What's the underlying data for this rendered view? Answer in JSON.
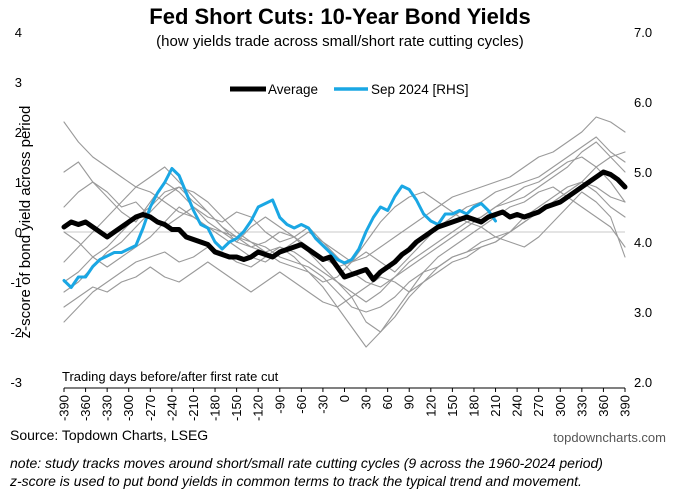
{
  "chart_data": {
    "type": "line",
    "title": "Fed Short Cuts: 10-Year Bond Yields",
    "subtitle": "(how yields trade across small/short rate cutting cycles)",
    "ylabel": "z-score of bond yield across period",
    "xlabel": "Trading days before/after first rate cut",
    "ylim": [
      -3,
      4
    ],
    "y2lim": [
      2.0,
      7.0
    ],
    "xlim": [
      -390,
      390
    ],
    "yticks": [
      "4",
      "3",
      "2",
      "1",
      "0",
      "-1",
      "-2",
      "-3"
    ],
    "y2ticks": [
      "7.0",
      "6.0",
      "5.0",
      "4.0",
      "3.0",
      "2.0"
    ],
    "xticks": [
      "-390",
      "-360",
      "-330",
      "-300",
      "-270",
      "-240",
      "-210",
      "-180",
      "-150",
      "-120",
      "-90",
      "-60",
      "-30",
      "0",
      "30",
      "60",
      "90",
      "120",
      "150",
      "180",
      "210",
      "240",
      "270",
      "300",
      "330",
      "360",
      "390"
    ],
    "legend_placement": "top-center",
    "zero_line": true,
    "series": [
      {
        "name": "Average",
        "color": "#000000",
        "axis": "left",
        "role": "average",
        "x": [
          -390,
          -380,
          -370,
          -360,
          -350,
          -340,
          -330,
          -320,
          -310,
          -300,
          -290,
          -280,
          -270,
          -260,
          -250,
          -240,
          -230,
          -220,
          -210,
          -200,
          -190,
          -180,
          -170,
          -160,
          -150,
          -140,
          -130,
          -120,
          -110,
          -100,
          -90,
          -80,
          -70,
          -60,
          -50,
          -40,
          -30,
          -20,
          -10,
          0,
          10,
          20,
          30,
          40,
          50,
          60,
          70,
          80,
          90,
          100,
          110,
          120,
          130,
          140,
          150,
          160,
          170,
          180,
          190,
          200,
          210,
          220,
          230,
          240,
          250,
          260,
          270,
          280,
          290,
          300,
          310,
          320,
          330,
          340,
          350,
          360,
          370,
          380,
          390
        ],
        "y": [
          0.1,
          0.2,
          0.15,
          0.2,
          0.1,
          0.0,
          -0.1,
          0.0,
          0.1,
          0.2,
          0.3,
          0.35,
          0.3,
          0.2,
          0.15,
          0.05,
          0.05,
          -0.1,
          -0.15,
          -0.2,
          -0.25,
          -0.4,
          -0.45,
          -0.5,
          -0.5,
          -0.55,
          -0.5,
          -0.4,
          -0.45,
          -0.5,
          -0.4,
          -0.35,
          -0.3,
          -0.25,
          -0.35,
          -0.45,
          -0.55,
          -0.5,
          -0.7,
          -0.9,
          -0.85,
          -0.8,
          -0.75,
          -0.95,
          -0.8,
          -0.7,
          -0.6,
          -0.45,
          -0.35,
          -0.2,
          -0.1,
          0.0,
          0.1,
          0.15,
          0.2,
          0.25,
          0.3,
          0.25,
          0.2,
          0.3,
          0.35,
          0.4,
          0.3,
          0.35,
          0.3,
          0.35,
          0.4,
          0.5,
          0.55,
          0.6,
          0.7,
          0.8,
          0.9,
          1.0,
          1.1,
          1.2,
          1.15,
          1.05,
          0.9
        ]
      },
      {
        "name": "Sep 2024 [RHS]",
        "color": "#1aa7e4",
        "axis": "right",
        "role": "current",
        "x": [
          -390,
          -380,
          -370,
          -360,
          -350,
          -340,
          -330,
          -320,
          -310,
          -300,
          -290,
          -280,
          -270,
          -260,
          -250,
          -240,
          -230,
          -220,
          -210,
          -200,
          -190,
          -180,
          -170,
          -160,
          -150,
          -140,
          -130,
          -120,
          -110,
          -100,
          -90,
          -80,
          -70,
          -60,
          -50,
          -40,
          -30,
          -20,
          -10,
          0,
          10,
          20,
          30,
          40,
          50,
          60,
          70,
          80,
          90,
          100,
          110,
          120,
          130,
          140,
          150,
          160,
          170,
          180,
          190,
          200,
          210
        ],
        "y": [
          3.45,
          3.35,
          3.5,
          3.5,
          3.65,
          3.75,
          3.8,
          3.85,
          3.85,
          3.9,
          3.95,
          4.2,
          4.5,
          4.7,
          4.85,
          5.05,
          4.95,
          4.7,
          4.45,
          4.25,
          4.2,
          4.0,
          3.9,
          4.0,
          4.05,
          4.15,
          4.3,
          4.5,
          4.55,
          4.6,
          4.35,
          4.25,
          4.2,
          4.25,
          4.2,
          4.05,
          3.95,
          3.85,
          3.75,
          3.7,
          3.75,
          3.9,
          4.15,
          4.35,
          4.5,
          4.45,
          4.65,
          4.8,
          4.75,
          4.6,
          4.4,
          4.3,
          4.25,
          4.4,
          4.4,
          4.45,
          4.4,
          4.5,
          4.55,
          4.45,
          4.3
        ]
      },
      {
        "name": "",
        "color": "#9a9a9a",
        "axis": "left",
        "role": "cycle",
        "x": [
          -390,
          -370,
          -350,
          -330,
          -310,
          -290,
          -270,
          -250,
          -230,
          -210,
          -190,
          -170,
          -150,
          -130,
          -110,
          -90,
          -70,
          -50,
          -30,
          -10,
          10,
          30,
          50,
          70,
          90,
          110,
          130,
          150,
          170,
          190,
          210,
          230,
          250,
          270,
          290,
          310,
          330,
          350,
          370,
          390
        ],
        "y": [
          2.2,
          1.8,
          1.5,
          1.3,
          1.1,
          0.9,
          0.8,
          0.6,
          0.4,
          0.3,
          0.1,
          0.0,
          -0.1,
          -0.2,
          -0.3,
          -0.5,
          -0.6,
          -0.7,
          -0.9,
          -1.2,
          -1.5,
          -1.6,
          -1.5,
          -1.3,
          -1.0,
          -0.8,
          -0.7,
          -0.5,
          -0.4,
          -0.2,
          -0.1,
          0.0,
          0.3,
          0.5,
          0.7,
          0.9,
          1.0,
          0.8,
          0.5,
          0.3
        ]
      },
      {
        "name": "",
        "color": "#9a9a9a",
        "axis": "left",
        "role": "cycle",
        "x": [
          -390,
          -370,
          -350,
          -330,
          -310,
          -290,
          -270,
          -250,
          -230,
          -210,
          -190,
          -170,
          -150,
          -130,
          -110,
          -90,
          -70,
          -50,
          -30,
          -10,
          10,
          30,
          50,
          70,
          90,
          110,
          130,
          150,
          170,
          190,
          210,
          230,
          250,
          270,
          290,
          310,
          330,
          350,
          370,
          390
        ],
        "y": [
          -1.0,
          -0.8,
          -0.5,
          -0.3,
          0.0,
          0.3,
          0.5,
          0.8,
          0.9,
          0.6,
          0.4,
          0.1,
          -0.2,
          -0.3,
          -0.4,
          -0.3,
          -0.5,
          -0.8,
          -1.0,
          -0.9,
          -0.6,
          -0.2,
          0.2,
          0.5,
          0.7,
          0.8,
          0.6,
          0.4,
          0.2,
          0.3,
          0.5,
          0.6,
          0.7,
          0.9,
          1.1,
          1.3,
          1.6,
          1.8,
          1.5,
          1.6
        ]
      },
      {
        "name": "",
        "color": "#9a9a9a",
        "axis": "left",
        "role": "cycle",
        "x": [
          -390,
          -370,
          -350,
          -330,
          -310,
          -290,
          -270,
          -250,
          -230,
          -210,
          -190,
          -170,
          -150,
          -130,
          -110,
          -90,
          -70,
          -50,
          -30,
          -10,
          10,
          30,
          50,
          70,
          90,
          110,
          130,
          150,
          170,
          190,
          210,
          230,
          250,
          270,
          290,
          310,
          330,
          350,
          370,
          390
        ],
        "y": [
          -1.8,
          -1.5,
          -1.2,
          -1.0,
          -0.8,
          -0.6,
          -0.5,
          -0.4,
          -0.6,
          -0.5,
          -0.3,
          -0.4,
          -0.6,
          -0.7,
          -0.5,
          -0.3,
          -0.4,
          -0.6,
          -0.8,
          -1.0,
          -1.2,
          -1.4,
          -1.2,
          -0.9,
          -0.7,
          -0.5,
          -0.3,
          -0.1,
          0.1,
          0.3,
          0.5,
          0.7,
          0.9,
          1.0,
          1.2,
          1.4,
          1.5,
          1.3,
          1.0,
          0.6
        ]
      },
      {
        "name": "",
        "color": "#9a9a9a",
        "axis": "left",
        "role": "cycle",
        "x": [
          -390,
          -370,
          -350,
          -330,
          -310,
          -290,
          -270,
          -250,
          -230,
          -210,
          -190,
          -170,
          -150,
          -130,
          -110,
          -90,
          -70,
          -50,
          -30,
          -10,
          10,
          30,
          50,
          70,
          90,
          110,
          130,
          150,
          170,
          190,
          210,
          230,
          250,
          270,
          290,
          310,
          330,
          350,
          370,
          390
        ],
        "y": [
          0.5,
          0.8,
          1.0,
          0.7,
          0.4,
          0.2,
          0.6,
          1.0,
          0.8,
          0.5,
          0.3,
          0.2,
          0.4,
          0.3,
          0.0,
          -0.2,
          -0.1,
          0.1,
          -0.2,
          -0.5,
          -0.8,
          -1.0,
          -1.1,
          -0.9,
          -0.6,
          -0.4,
          -0.2,
          0.0,
          0.2,
          0.1,
          -0.1,
          -0.2,
          -0.3,
          -0.1,
          0.2,
          0.5,
          0.8,
          0.6,
          0.3,
          -0.5
        ]
      },
      {
        "name": "",
        "color": "#9a9a9a",
        "axis": "left",
        "role": "cycle",
        "x": [
          -390,
          -370,
          -350,
          -330,
          -310,
          -290,
          -270,
          -250,
          -230,
          -210,
          -190,
          -170,
          -150,
          -130,
          -110,
          -90,
          -70,
          -50,
          -30,
          -10,
          10,
          30,
          50,
          70,
          90,
          110,
          130,
          150,
          170,
          190,
          210,
          230,
          250,
          270,
          290,
          310,
          330,
          350,
          370,
          390
        ],
        "y": [
          -1.5,
          -1.3,
          -1.1,
          -1.2,
          -1.0,
          -0.9,
          -0.7,
          -0.9,
          -1.0,
          -0.8,
          -0.6,
          -0.8,
          -1.0,
          -1.2,
          -1.0,
          -0.8,
          -1.0,
          -1.2,
          -1.4,
          -1.5,
          -1.3,
          -1.1,
          -0.9,
          -1.0,
          -1.2,
          -1.0,
          -0.8,
          -0.6,
          -0.5,
          -0.3,
          -0.2,
          0.0,
          0.2,
          0.4,
          0.6,
          0.8,
          1.0,
          1.3,
          1.5,
          1.2
        ]
      },
      {
        "name": "",
        "color": "#9a9a9a",
        "axis": "left",
        "role": "cycle",
        "x": [
          -390,
          -370,
          -350,
          -330,
          -310,
          -290,
          -270,
          -250,
          -230,
          -210,
          -190,
          -170,
          -150,
          -130,
          -110,
          -90,
          -70,
          -50,
          -30,
          -10,
          10,
          30,
          50,
          70,
          90,
          110,
          130,
          150,
          170,
          190,
          210,
          230,
          250,
          270,
          290,
          310,
          330,
          350,
          370,
          390
        ],
        "y": [
          1.2,
          1.4,
          1.0,
          0.8,
          0.5,
          0.6,
          0.3,
          0.1,
          0.3,
          0.5,
          0.2,
          0.0,
          -0.2,
          0.1,
          0.3,
          0.1,
          -0.1,
          -0.3,
          -0.5,
          -0.7,
          -0.6,
          -0.4,
          -0.6,
          -0.8,
          -0.5,
          -0.2,
          0.1,
          0.3,
          0.5,
          0.6,
          0.8,
          0.9,
          1.0,
          1.1,
          1.3,
          1.5,
          1.7,
          1.9,
          1.6,
          1.4
        ]
      },
      {
        "name": "",
        "color": "#9a9a9a",
        "axis": "left",
        "role": "cycle",
        "x": [
          -390,
          -370,
          -350,
          -330,
          -310,
          -290,
          -270,
          -250,
          -230,
          -210,
          -190,
          -170,
          -150,
          -130,
          -110,
          -90,
          -70,
          -50,
          -30,
          -10,
          10,
          30,
          50,
          70,
          90,
          110,
          130,
          150,
          170,
          190,
          210,
          230,
          250,
          270,
          290,
          310,
          330,
          350,
          370,
          390
        ],
        "y": [
          -0.6,
          -0.3,
          0.0,
          0.3,
          0.6,
          0.9,
          1.1,
          1.3,
          1.0,
          0.7,
          0.4,
          0.1,
          -0.1,
          -0.3,
          -0.2,
          0.0,
          -0.1,
          -0.4,
          -0.7,
          -1.0,
          -1.3,
          -1.8,
          -2.0,
          -1.7,
          -1.3,
          -1.0,
          -0.7,
          -0.5,
          -0.4,
          -0.3,
          -0.2,
          0.0,
          0.2,
          0.4,
          0.6,
          0.8,
          1.0,
          0.9,
          0.7,
          0.6
        ]
      },
      {
        "name": "",
        "color": "#9a9a9a",
        "axis": "left",
        "role": "cycle",
        "x": [
          -390,
          -370,
          -350,
          -330,
          -310,
          -290,
          -270,
          -250,
          -230,
          -210,
          -190,
          -170,
          -150,
          -130,
          -110,
          -90,
          -70,
          -50,
          -30,
          -10,
          10,
          30,
          50,
          70,
          90,
          110,
          130,
          150,
          170,
          190,
          210,
          230,
          250,
          270,
          290,
          310,
          330,
          350,
          370,
          390
        ],
        "y": [
          0.0,
          -0.2,
          -0.5,
          -0.7,
          -0.5,
          -0.3,
          -0.1,
          0.2,
          0.5,
          0.3,
          0.1,
          -0.1,
          -0.3,
          -0.5,
          -0.6,
          -0.4,
          -0.2,
          0.0,
          -0.2,
          -0.4,
          -0.6,
          -0.5,
          -0.3,
          -0.1,
          0.1,
          0.3,
          0.5,
          0.7,
          0.8,
          0.9,
          1.0,
          1.1,
          1.3,
          1.5,
          1.6,
          1.8,
          2.0,
          2.3,
          2.2,
          2.0
        ]
      },
      {
        "name": "",
        "color": "#9a9a9a",
        "axis": "left",
        "role": "cycle",
        "x": [
          -390,
          -370,
          -350,
          -330,
          -310,
          -290,
          -270,
          -250,
          -230,
          -210,
          -190,
          -170,
          -150,
          -130,
          -110,
          -90,
          -70,
          -50,
          -30,
          -10,
          10,
          30,
          50,
          70,
          90,
          110,
          130,
          150,
          170,
          190,
          210,
          230,
          250,
          270,
          290,
          310,
          330,
          350,
          370,
          390
        ],
        "y": [
          -1.2,
          -1.0,
          -0.7,
          -0.4,
          -0.2,
          0.1,
          0.4,
          0.7,
          0.9,
          0.8,
          0.6,
          0.3,
          0.0,
          -0.2,
          -0.4,
          -0.6,
          -0.7,
          -0.8,
          -1.1,
          -1.5,
          -1.9,
          -2.3,
          -2.0,
          -1.6,
          -1.2,
          -0.8,
          -0.5,
          -0.3,
          -0.1,
          0.1,
          0.3,
          0.5,
          0.6,
          0.8,
          0.9,
          0.7,
          0.5,
          0.3,
          0.1,
          -0.3
        ]
      }
    ]
  },
  "footer": {
    "source": "Source: Topdown Charts, LSEG",
    "brand": "topdowncharts.com",
    "note_line1": "note: study tracks moves around short/small rate cutting cycles (9 across the 1960-2024 period)",
    "note_line2": "z-score is used to put bond yields in common terms to track the typical trend and movement."
  }
}
